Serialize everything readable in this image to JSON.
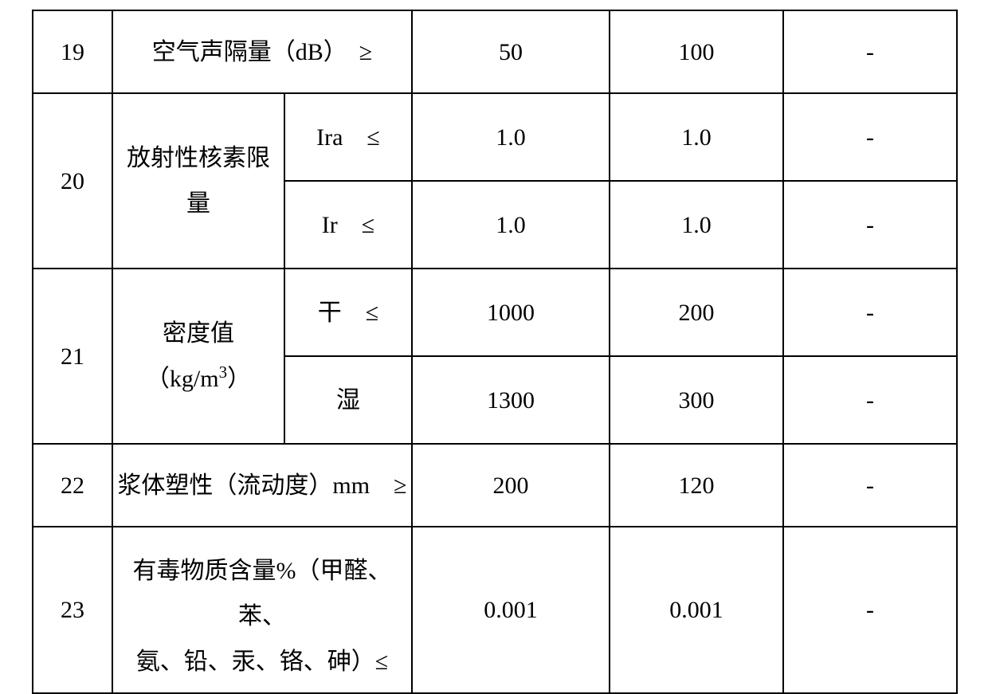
{
  "table": {
    "cols": {
      "num_width": 100,
      "name_width": 216,
      "sub_width": 160,
      "v1_width": 248,
      "v2_width": 218,
      "v3_width": 218
    },
    "border_color": "#000000",
    "border_width": 2.5,
    "background": "#ffffff",
    "font_family": "SimSun",
    "font_size": 30,
    "rows": {
      "r19": {
        "num": "19",
        "name": "空气声隔量（dB）　≥",
        "v1": "50",
        "v2": "100",
        "v3": "-"
      },
      "r20": {
        "num": "20",
        "name_line1": "放射性核素限",
        "name_line2": "量",
        "sub_a": "Ira　≤",
        "a_v1": "1.0",
        "a_v2": "1.0",
        "a_v3": "-",
        "sub_b": "Ir　≤",
        "b_v1": "1.0",
        "b_v2": "1.0",
        "b_v3": "-"
      },
      "r21": {
        "num": "21",
        "name_html": "密度值（kg/m³）",
        "sub_a": "干　≤",
        "a_v1": "1000",
        "a_v2": "200",
        "a_v3": "-",
        "sub_b": "湿",
        "b_v1": "1300",
        "b_v2": "300",
        "b_v3": "-"
      },
      "r22": {
        "num": "22",
        "name": "浆体塑性（流动度）mm　≥",
        "v1": "200",
        "v2": "120",
        "v3": "-"
      },
      "r23": {
        "num": "23",
        "name_line1": "有毒物质含量%（甲醛、苯、",
        "name_line2": "氨、铅、汞、铬、砷）≤",
        "v1": "0.001",
        "v2": "0.001",
        "v3": "-"
      }
    }
  }
}
